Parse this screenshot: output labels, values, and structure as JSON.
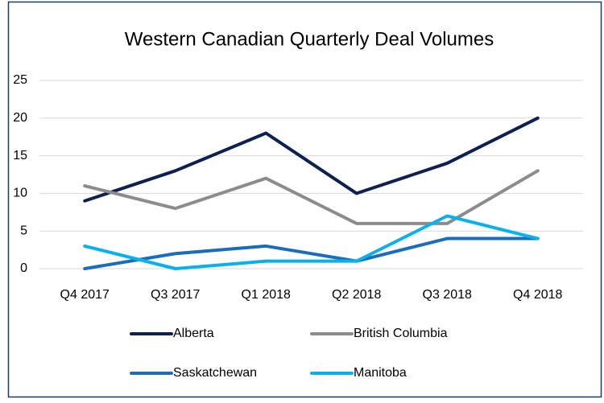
{
  "chart_data": {
    "type": "line",
    "title": "Western Canadian Quarterly Deal Volumes",
    "categories": [
      "Q4 2017",
      "Q3 2017",
      "Q1 2018",
      "Q2 2018",
      "Q3 2018",
      "Q4 2018"
    ],
    "series": [
      {
        "name": "Alberta",
        "color": "#0e2050",
        "values": [
          9,
          13,
          18,
          10,
          14,
          20
        ]
      },
      {
        "name": "British Columbia",
        "color": "#8c8c8c",
        "values": [
          11,
          8,
          12,
          6,
          6,
          13
        ]
      },
      {
        "name": "Saskatchewan",
        "color": "#1b6dbb",
        "values": [
          0,
          2,
          3,
          1,
          4,
          4
        ]
      },
      {
        "name": "Manitoba",
        "color": "#0ab0ee",
        "values": [
          3,
          0,
          1,
          1,
          7,
          4
        ]
      }
    ],
    "ylim": [
      0,
      25
    ],
    "yticks": [
      0,
      5,
      10,
      15,
      20,
      25
    ],
    "grid": true,
    "legend": "bottom"
  }
}
